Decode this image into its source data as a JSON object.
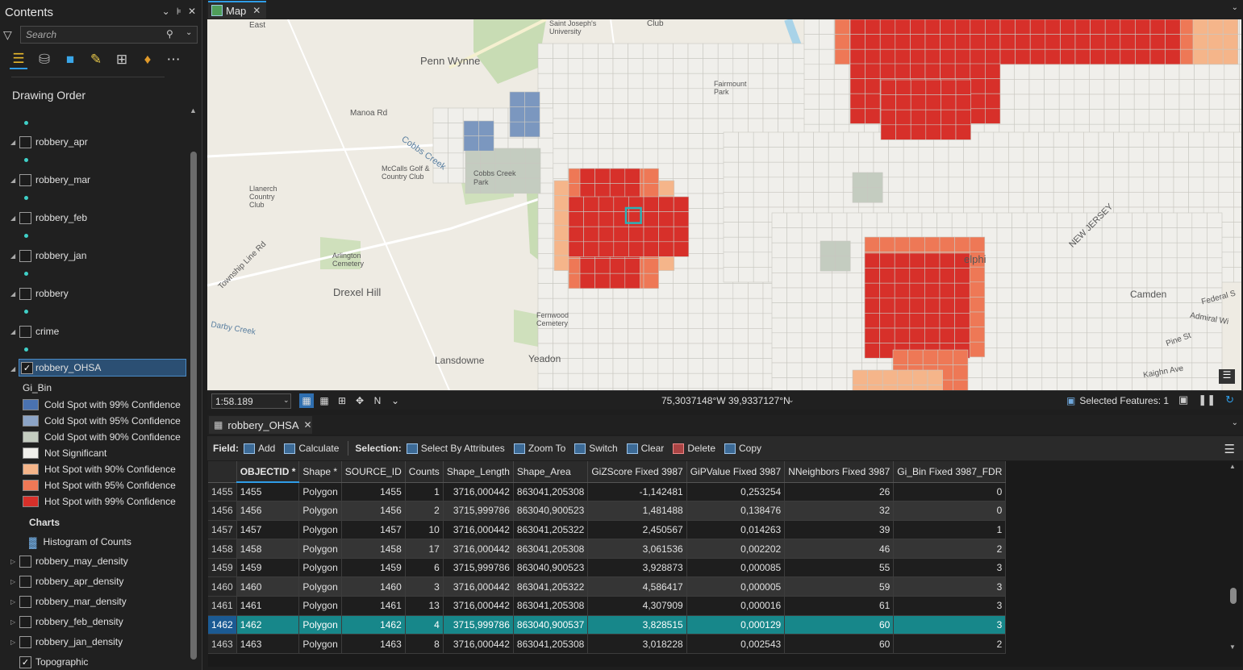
{
  "contents": {
    "title": "Contents",
    "search_placeholder": "Search",
    "drawing_order_label": "Drawing Order",
    "layers": [
      {
        "name": "robbery_apr",
        "checked": false
      },
      {
        "name": "robbery_mar",
        "checked": false
      },
      {
        "name": "robbery_feb",
        "checked": false
      },
      {
        "name": "robbery_jan",
        "checked": false
      },
      {
        "name": "robbery",
        "checked": false
      },
      {
        "name": "crime",
        "checked": false
      }
    ],
    "selected_layer": {
      "name": "robbery_OHSA",
      "checked": true
    },
    "symbology_field": "Gi_Bin",
    "legend": [
      {
        "label": "Cold Spot with 99% Confidence",
        "color": "#4a72b0"
      },
      {
        "label": "Cold Spot with 95% Confidence",
        "color": "#8ca4c6"
      },
      {
        "label": "Cold Spot with 90% Confidence",
        "color": "#c4ccc0"
      },
      {
        "label": "Not Significant",
        "color": "#f0efeb"
      },
      {
        "label": "Hot Spot with 90% Confidence",
        "color": "#f5b58a"
      },
      {
        "label": "Hot Spot with 95% Confidence",
        "color": "#ee7856"
      },
      {
        "label": "Hot Spot with 99% Confidence",
        "color": "#d7302a"
      }
    ],
    "charts_label": "Charts",
    "chart_item": "Histogram of Counts",
    "density_layers": [
      {
        "name": "robbery_may_density",
        "checked": false
      },
      {
        "name": "robbery_apr_density",
        "checked": false
      },
      {
        "name": "robbery_mar_density",
        "checked": false
      },
      {
        "name": "robbery_feb_density",
        "checked": false
      },
      {
        "name": "robbery_jan_density",
        "checked": false
      }
    ],
    "basemap": {
      "name": "Topographic",
      "checked": true
    }
  },
  "map": {
    "tab_label": "Map",
    "scale": "1:58.189",
    "coordinates": "75,3037148°W 39,9337127°N",
    "selected_features": "Selected Features: 1",
    "labels": [
      "Penn Wynne",
      "Manoa Rd",
      "Cobbs Creek",
      "McCalls Golf & Country Club",
      "Cobbs Creek Park",
      "Llanerch Country Club",
      "Township Line Rd",
      "Darby Creek",
      "Arlington Cemetery",
      "Drexel Hill",
      "Lansdowne",
      "Yeadon",
      "Fernwood Cemetery",
      "Camden",
      "NEW JERSEY",
      "Fairmount Park",
      "Pine St",
      "Admiral Wi",
      "Federal S",
      "Kaighn Ave",
      "elphi",
      "East",
      "Club",
      "Saint Joseph's University"
    ],
    "legend_colors": {
      "ns": "#f0efeb",
      "ns_border": "#c9c7c0",
      "hot90": "#f5b58a",
      "hot95": "#ee7856",
      "hot99": "#d7302a",
      "cold99": "#7b97bf",
      "cold90": "#c4ccc0",
      "selected_outline": "#2ab3b8"
    }
  },
  "attribute_table": {
    "tab_label": "robbery_OHSA",
    "toolbar": {
      "field_label": "Field:",
      "add": "Add",
      "calculate": "Calculate",
      "selection_label": "Selection:",
      "select_by_attributes": "Select By Attributes",
      "zoom_to": "Zoom To",
      "switch": "Switch",
      "clear": "Clear",
      "delete": "Delete",
      "copy": "Copy"
    },
    "columns": [
      "OBJECTID *",
      "Shape *",
      "SOURCE_ID",
      "Counts",
      "Shape_Length",
      "Shape_Area",
      "GiZScore Fixed 3987",
      "GiPValue Fixed 3987",
      "NNeighbors Fixed 3987",
      "Gi_Bin Fixed 3987_FDR"
    ],
    "rows": [
      {
        "row": "1455",
        "objectid": "1455",
        "shape": "Polygon",
        "source_id": "1455",
        "counts": "1",
        "shape_length": "3716,000442",
        "shape_area": "863041,205308",
        "gizscore": "-1,142481",
        "gipvalue": "0,253254",
        "nneighbors": "26",
        "gi_bin": "0"
      },
      {
        "row": "1456",
        "objectid": "1456",
        "shape": "Polygon",
        "source_id": "1456",
        "counts": "2",
        "shape_length": "3715,999786",
        "shape_area": "863040,900523",
        "gizscore": "1,481488",
        "gipvalue": "0,138476",
        "nneighbors": "32",
        "gi_bin": "0"
      },
      {
        "row": "1457",
        "objectid": "1457",
        "shape": "Polygon",
        "source_id": "1457",
        "counts": "10",
        "shape_length": "3716,000442",
        "shape_area": "863041,205322",
        "gizscore": "2,450567",
        "gipvalue": "0,014263",
        "nneighbors": "39",
        "gi_bin": "1"
      },
      {
        "row": "1458",
        "objectid": "1458",
        "shape": "Polygon",
        "source_id": "1458",
        "counts": "17",
        "shape_length": "3716,000442",
        "shape_area": "863041,205308",
        "gizscore": "3,061536",
        "gipvalue": "0,002202",
        "nneighbors": "46",
        "gi_bin": "2"
      },
      {
        "row": "1459",
        "objectid": "1459",
        "shape": "Polygon",
        "source_id": "1459",
        "counts": "6",
        "shape_length": "3715,999786",
        "shape_area": "863040,900523",
        "gizscore": "3,928873",
        "gipvalue": "0,000085",
        "nneighbors": "55",
        "gi_bin": "3"
      },
      {
        "row": "1460",
        "objectid": "1460",
        "shape": "Polygon",
        "source_id": "1460",
        "counts": "3",
        "shape_length": "3716,000442",
        "shape_area": "863041,205322",
        "gizscore": "4,586417",
        "gipvalue": "0,000005",
        "nneighbors": "59",
        "gi_bin": "3"
      },
      {
        "row": "1461",
        "objectid": "1461",
        "shape": "Polygon",
        "source_id": "1461",
        "counts": "13",
        "shape_length": "3716,000442",
        "shape_area": "863041,205308",
        "gizscore": "4,307909",
        "gipvalue": "0,000016",
        "nneighbors": "61",
        "gi_bin": "3"
      },
      {
        "row": "1462",
        "objectid": "1462",
        "shape": "Polygon",
        "source_id": "1462",
        "counts": "4",
        "shape_length": "3715,999786",
        "shape_area": "863040,900537",
        "gizscore": "3,828515",
        "gipvalue": "0,000129",
        "nneighbors": "60",
        "gi_bin": "3",
        "selected": true
      },
      {
        "row": "1463",
        "objectid": "1463",
        "shape": "Polygon",
        "source_id": "1463",
        "counts": "8",
        "shape_length": "3716,000442",
        "shape_area": "863041,205308",
        "gizscore": "3,018228",
        "gipvalue": "0,002543",
        "nneighbors": "60",
        "gi_bin": "2"
      }
    ]
  }
}
